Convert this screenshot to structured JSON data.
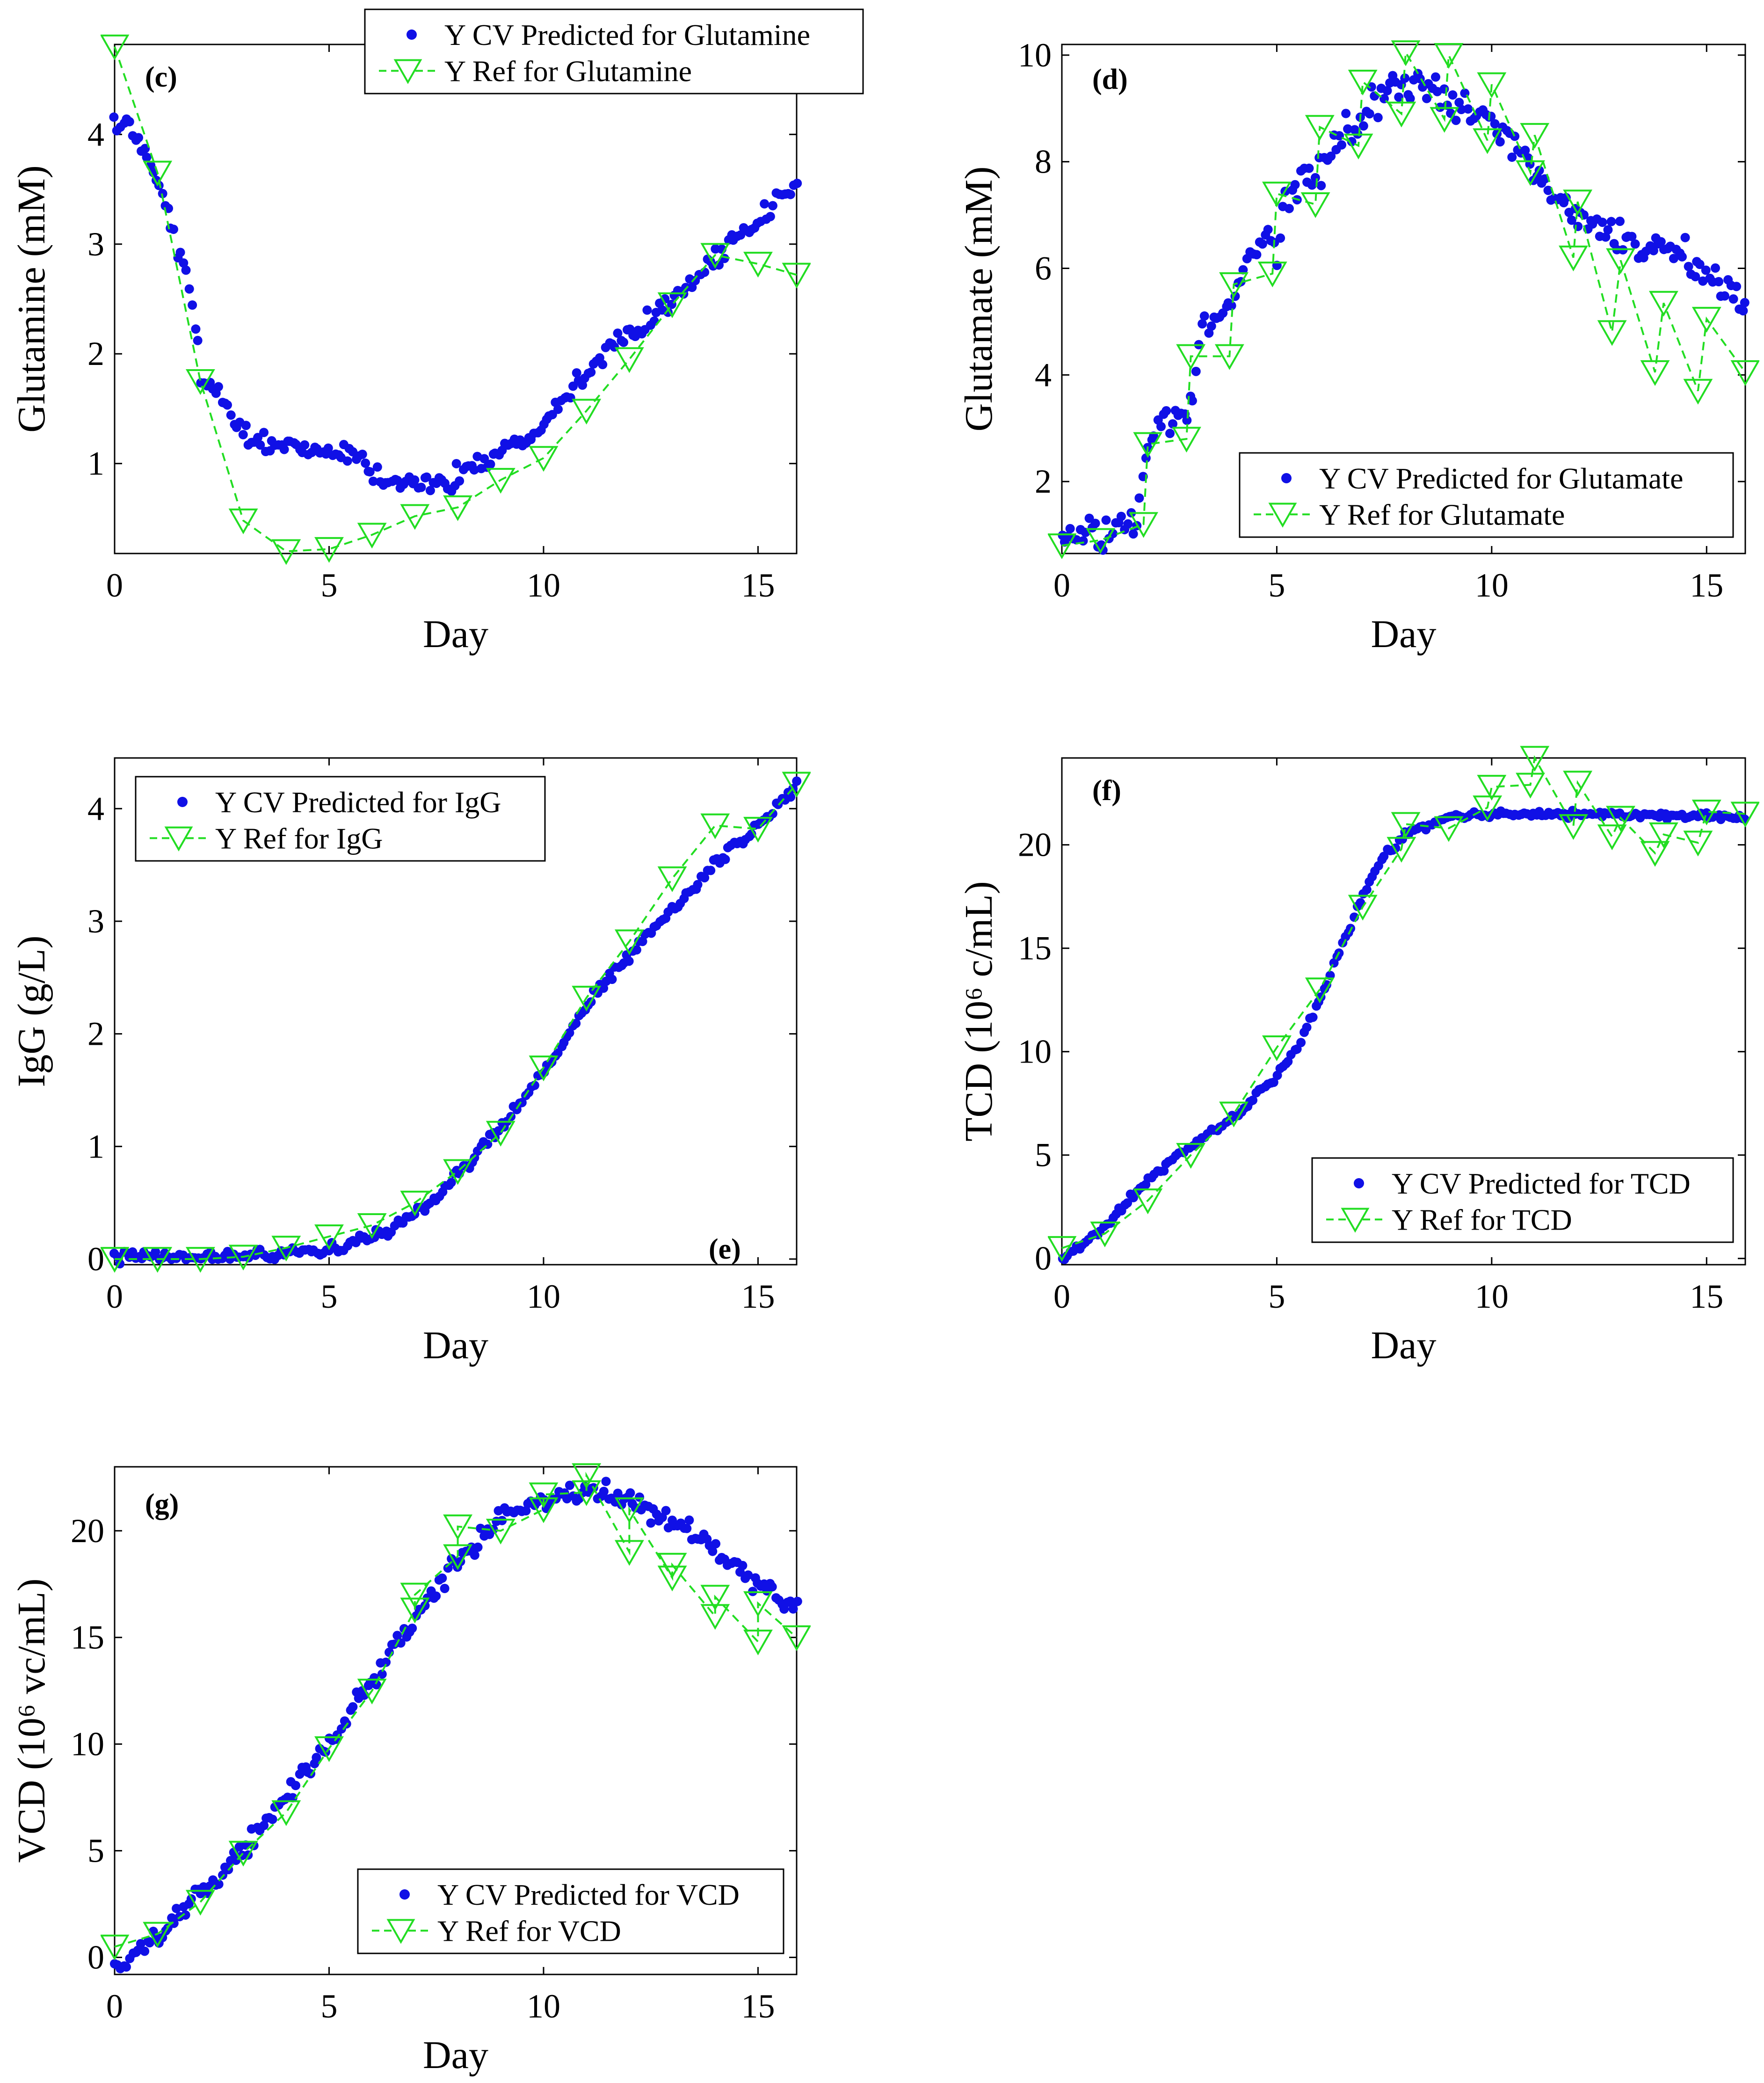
{
  "figure": {
    "colors": {
      "predicted": "#1010E6",
      "reference": "#22DD22",
      "axis": "#000000"
    }
  },
  "chart_data": [
    {
      "id": "c",
      "type": "scatter",
      "panel_label": "(c)",
      "xlabel": "Day",
      "ylabel": "Glutamine (mM)",
      "xlim": [
        0,
        15.9
      ],
      "ylim": [
        0.18,
        4.82
      ],
      "xticks": [
        0,
        5,
        10,
        15
      ],
      "yticks": [
        1,
        2,
        3,
        4
      ],
      "legend_position": "top-right",
      "series": [
        {
          "name": "Y CV Predicted for Glutamine",
          "kind": "points",
          "anchors": [
            [
              0,
              4.05
            ],
            [
              0.2,
              4.15
            ],
            [
              0.5,
              3.95
            ],
            [
              0.8,
              3.8
            ],
            [
              1.2,
              3.3
            ],
            [
              1.6,
              2.8
            ],
            [
              1.9,
              2.3
            ],
            [
              2.0,
              1.75
            ],
            [
              2.5,
              1.65
            ],
            [
              2.8,
              1.4
            ],
            [
              3.2,
              1.2
            ],
            [
              4,
              1.15
            ],
            [
              5,
              1.1
            ],
            [
              5.5,
              1.12
            ],
            [
              6,
              0.95
            ],
            [
              6.5,
              0.82
            ],
            [
              7,
              0.8
            ],
            [
              7.5,
              0.8
            ],
            [
              8,
              0.9
            ],
            [
              9,
              1.1
            ],
            [
              10,
              1.4
            ],
            [
              11,
              1.85
            ],
            [
              12,
              2.2
            ],
            [
              13,
              2.5
            ],
            [
              14,
              2.85
            ],
            [
              15,
              3.2
            ],
            [
              15.9,
              3.55
            ]
          ],
          "noise": 0.1
        },
        {
          "name": "Y Ref for Glutamine",
          "kind": "ref",
          "x": [
            0,
            1,
            2,
            3,
            4,
            5,
            6,
            7,
            8,
            9,
            10,
            11,
            12,
            13,
            14,
            15,
            15.9
          ],
          "y": [
            4.8,
            3.65,
            1.75,
            0.48,
            0.2,
            0.22,
            0.35,
            0.52,
            0.6,
            0.85,
            1.05,
            1.48,
            1.95,
            2.45,
            2.9,
            2.82,
            2.72
          ]
        }
      ]
    },
    {
      "id": "d",
      "type": "scatter",
      "panel_label": "(d)",
      "xlabel": "Day",
      "ylabel": "Glutamate (mM)",
      "xlim": [
        0,
        15.9
      ],
      "ylim": [
        0.65,
        10.2
      ],
      "xticks": [
        0,
        5,
        10,
        15
      ],
      "yticks": [
        2,
        4,
        6,
        8,
        10
      ],
      "legend_position": "bottom-right",
      "series": [
        {
          "name": "Y CV Predicted for Glutamate",
          "kind": "points",
          "anchors": [
            [
              0,
              0.9
            ],
            [
              1,
              0.95
            ],
            [
              1.8,
              1.3
            ],
            [
              2,
              2.8
            ],
            [
              3,
              3.4
            ],
            [
              3.2,
              4.8
            ],
            [
              4,
              5.3
            ],
            [
              4.3,
              6.3
            ],
            [
              5,
              6.5
            ],
            [
              5.2,
              7.5
            ],
            [
              6,
              7.8
            ],
            [
              6.5,
              8.5
            ],
            [
              7,
              8.8
            ],
            [
              8,
              9.5
            ],
            [
              9,
              9.2
            ],
            [
              10,
              8.7
            ],
            [
              11,
              7.8
            ],
            [
              12,
              7.0
            ],
            [
              13,
              6.6
            ],
            [
              14,
              6.3
            ],
            [
              15,
              6.0
            ],
            [
              15.9,
              5.3
            ]
          ],
          "noise": 0.35
        },
        {
          "name": "Y Ref for Glutamate",
          "kind": "ref",
          "x": [
            0,
            0.9,
            1.9,
            2,
            2.9,
            3,
            3.9,
            4,
            4.9,
            5,
            5.9,
            6,
            6.9,
            7,
            7.9,
            8,
            8.9,
            9,
            9.9,
            10,
            10.9,
            11,
            11.9,
            12,
            12.8,
            13,
            13.8,
            14,
            14.8,
            15,
            15.9
          ],
          "y": [
            0.8,
            0.9,
            1.2,
            2.7,
            2.8,
            4.35,
            4.35,
            5.7,
            5.9,
            7.4,
            7.2,
            8.65,
            8.3,
            9.5,
            8.9,
            10.05,
            8.8,
            10.0,
            8.4,
            9.45,
            7.8,
            8.5,
            6.2,
            7.25,
            4.8,
            6.15,
            4.05,
            5.35,
            3.7,
            5.05,
            4.05
          ]
        }
      ]
    },
    {
      "id": "e",
      "type": "scatter",
      "panel_label": "(e)",
      "xlabel": "Day",
      "ylabel": "IgG (g/L)",
      "xlim": [
        0,
        15.9
      ],
      "ylim": [
        -0.05,
        4.45
      ],
      "xticks": [
        0,
        5,
        10,
        15
      ],
      "yticks": [
        0,
        1,
        2,
        3,
        4
      ],
      "legend_position": "top-left",
      "series": [
        {
          "name": "Y CV Predicted for IgG",
          "kind": "points",
          "anchors": [
            [
              0,
              0.02
            ],
            [
              2,
              0.02
            ],
            [
              4,
              0.05
            ],
            [
              5,
              0.08
            ],
            [
              6,
              0.2
            ],
            [
              7,
              0.38
            ],
            [
              7.5,
              0.55
            ],
            [
              8,
              0.75
            ],
            [
              9,
              1.15
            ],
            [
              10,
              1.65
            ],
            [
              11,
              2.25
            ],
            [
              12,
              2.7
            ],
            [
              13,
              3.1
            ],
            [
              14,
              3.5
            ],
            [
              15,
              3.85
            ],
            [
              15.9,
              4.2
            ]
          ],
          "noise": 0.05
        },
        {
          "name": "Y Ref for IgG",
          "kind": "ref",
          "x": [
            0,
            1,
            2,
            3,
            4,
            5,
            6,
            7,
            8,
            9,
            10,
            11,
            12,
            13,
            14,
            15,
            15.9
          ],
          "y": [
            0,
            0,
            0,
            0.02,
            0.1,
            0.2,
            0.3,
            0.5,
            0.78,
            1.12,
            1.7,
            2.32,
            2.82,
            3.38,
            3.85,
            3.82,
            4.22
          ]
        }
      ]
    },
    {
      "id": "f",
      "type": "scatter",
      "panel_label": "(f)",
      "xlabel": "Day",
      "ylabel": "TCD (10⁶ c/mL)",
      "xlim": [
        0,
        15.9
      ],
      "ylim": [
        -0.3,
        24.2
      ],
      "xticks": [
        0,
        5,
        10,
        15
      ],
      "yticks": [
        0,
        5,
        10,
        15,
        20
      ],
      "legend_position": "bottom-right",
      "series": [
        {
          "name": "Y CV Predicted for TCD",
          "kind": "points",
          "anchors": [
            [
              0,
              0
            ],
            [
              1,
              1.5
            ],
            [
              2,
              3.8
            ],
            [
              3,
              5.5
            ],
            [
              4,
              6.8
            ],
            [
              5,
              8.8
            ],
            [
              5.5,
              10.2
            ],
            [
              6,
              12.5
            ],
            [
              7,
              17.5
            ],
            [
              7.5,
              19.5
            ],
            [
              8,
              20.5
            ],
            [
              9,
              21.3
            ],
            [
              10,
              21.5
            ],
            [
              15.9,
              21.4
            ]
          ],
          "noise": 0.18
        },
        {
          "name": "Y Ref for TCD",
          "kind": "ref",
          "x": [
            0,
            1,
            2,
            3,
            4,
            5,
            6,
            7,
            7.9,
            8,
            9,
            9.9,
            10,
            10.9,
            11,
            11.9,
            12,
            12.8,
            13,
            13.8,
            14,
            14.8,
            15,
            15.9
          ],
          "y": [
            0.5,
            1.2,
            2.8,
            5.0,
            7.0,
            10.2,
            13.0,
            17.0,
            19.8,
            21.0,
            20.8,
            21.8,
            22.8,
            22.9,
            24.2,
            20.9,
            23.0,
            20.4,
            21.3,
            19.6,
            20.5,
            20.1,
            21.6,
            21.5
          ]
        }
      ]
    },
    {
      "id": "g",
      "type": "scatter",
      "panel_label": "(g)",
      "xlabel": "Day",
      "ylabel": "VCD (10⁶ vc/mL)",
      "xlim": [
        0,
        15.9
      ],
      "ylim": [
        -0.8,
        23.0
      ],
      "xticks": [
        0,
        5,
        10,
        15
      ],
      "yticks": [
        0,
        5,
        10,
        15,
        20
      ],
      "legend_position": "bottom-right",
      "series": [
        {
          "name": "Y CV Predicted for VCD",
          "kind": "points",
          "anchors": [
            [
              0,
              -0.5
            ],
            [
              1,
              1.0
            ],
            [
              2,
              3.0
            ],
            [
              3,
              5.0
            ],
            [
              4,
              7.5
            ],
            [
              5,
              10.0
            ],
            [
              6,
              13.0
            ],
            [
              7,
              16.0
            ],
            [
              8,
              18.5
            ],
            [
              9,
              20.5
            ],
            [
              10,
              21.5
            ],
            [
              11,
              22.0
            ],
            [
              12,
              21.5
            ],
            [
              13,
              20.5
            ],
            [
              14,
              19.0
            ],
            [
              15,
              17.5
            ],
            [
              15.9,
              16.5
            ]
          ],
          "noise": 0.5
        },
        {
          "name": "Y Ref for VCD",
          "kind": "ref",
          "x": [
            0,
            1,
            2,
            3,
            4,
            5,
            6,
            7,
            7,
            8,
            8,
            9,
            10,
            10,
            11,
            11,
            12,
            12,
            13,
            13,
            14,
            14,
            15,
            15,
            15.9
          ],
          "y": [
            0.5,
            1.1,
            2.6,
            4.9,
            6.8,
            9.8,
            12.5,
            16.3,
            17.0,
            18.8,
            20.2,
            20.0,
            21.0,
            21.7,
            21.8,
            22.6,
            19.0,
            21.0,
            17.8,
            18.4,
            16.0,
            16.9,
            14.8,
            16.6,
            15.0
          ]
        }
      ]
    }
  ]
}
